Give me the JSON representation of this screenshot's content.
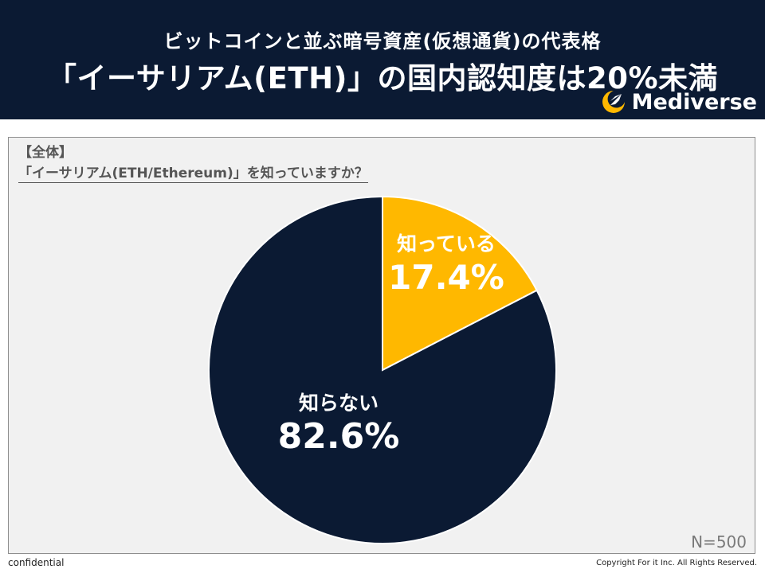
{
  "header": {
    "subtitle": "ビットコインと並ぶ暗号資産(仮想通貨)の代表格",
    "title": "「イーサリアム(ETH)」の国内認知度は20%未満",
    "brand": "Mediverse",
    "brand_icon": "rocket-moon-icon"
  },
  "question": {
    "scope": "【全体】",
    "text": "「イーサリアム(ETH/Ethereum)」を知っていますか？"
  },
  "sample_size": "N=500",
  "footer": {
    "left": "confidential",
    "right": "Copyright For it Inc. All Rights Reserved."
  },
  "colors": {
    "header_bg": "#0b1a33",
    "navy": "#0b1a33",
    "gold": "#ffb800"
  },
  "chart_data": {
    "type": "pie",
    "title": "",
    "slices": [
      {
        "label": "知っている",
        "value": 17.4,
        "display": "17.4%",
        "color": "#ffb800"
      },
      {
        "label": "知らない",
        "value": 82.6,
        "display": "82.6%",
        "color": "#0b1a33"
      }
    ]
  }
}
